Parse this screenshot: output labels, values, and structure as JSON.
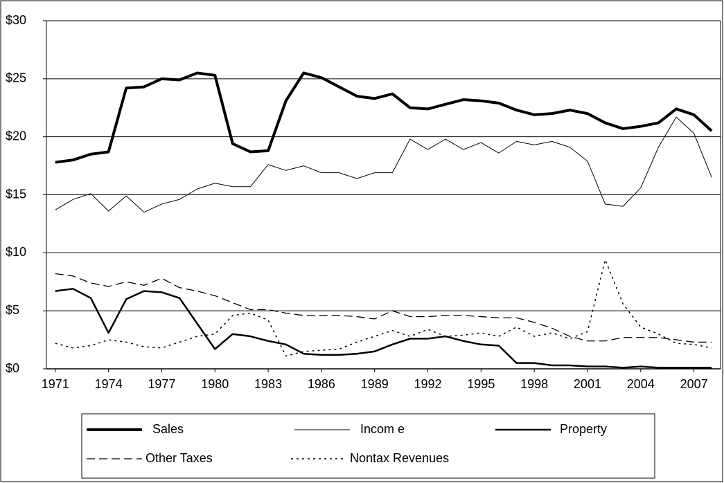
{
  "chart_data": {
    "type": "line",
    "x": [
      1971,
      1972,
      1973,
      1974,
      1975,
      1976,
      1977,
      1978,
      1979,
      1980,
      1981,
      1982,
      1983,
      1984,
      1985,
      1986,
      1987,
      1988,
      1989,
      1990,
      1991,
      1992,
      1993,
      1994,
      1995,
      1996,
      1997,
      1998,
      1999,
      2000,
      2001,
      2002,
      2003,
      2004,
      2005,
      2006,
      2007,
      2008
    ],
    "xlim": [
      1970.5,
      2008.5
    ],
    "xticks": [
      1971,
      1974,
      1977,
      1980,
      1983,
      1986,
      1989,
      1992,
      1995,
      1998,
      2001,
      2004,
      2007
    ],
    "ylim": [
      0,
      30
    ],
    "yticks": [
      {
        "value": 0,
        "label": "$0"
      },
      {
        "value": 5,
        "label": "$5"
      },
      {
        "value": 10,
        "label": "$10"
      },
      {
        "value": 15,
        "label": "$15"
      },
      {
        "value": 20,
        "label": "$20"
      },
      {
        "value": 25,
        "label": "$25"
      },
      {
        "value": 30,
        "label": "$30"
      }
    ],
    "grid": true,
    "legend": "bottom",
    "series": [
      {
        "name": "Sales",
        "color": "#000000",
        "width": 4,
        "dash": "solid",
        "values": [
          17.8,
          18.0,
          18.5,
          18.7,
          24.2,
          24.3,
          25.0,
          24.9,
          25.5,
          25.3,
          19.4,
          18.7,
          18.8,
          23.1,
          25.5,
          25.1,
          24.3,
          23.5,
          23.3,
          23.7,
          22.5,
          22.4,
          22.8,
          23.2,
          23.1,
          22.9,
          22.3,
          21.9,
          22.0,
          22.3,
          22.0,
          21.2,
          20.7,
          20.9,
          21.2,
          22.4,
          21.9,
          20.5
        ]
      },
      {
        "name": "Incom e",
        "color": "#000000",
        "width": 1,
        "dash": "solid",
        "values": [
          13.7,
          14.6,
          15.1,
          13.6,
          14.9,
          13.5,
          14.2,
          14.6,
          15.5,
          16.0,
          15.7,
          15.7,
          17.6,
          17.1,
          17.5,
          16.9,
          16.9,
          16.4,
          16.9,
          16.9,
          19.8,
          18.9,
          19.8,
          18.9,
          19.5,
          18.6,
          19.6,
          19.3,
          19.6,
          19.1,
          17.9,
          14.2,
          14.0,
          15.6,
          19.1,
          21.7,
          20.3,
          16.5
        ]
      },
      {
        "name": "Property",
        "color": "#000000",
        "width": 2.5,
        "dash": "solid",
        "values": [
          6.7,
          6.9,
          6.1,
          3.1,
          6.0,
          6.7,
          6.6,
          6.1,
          3.9,
          1.7,
          3.0,
          2.8,
          2.4,
          2.1,
          1.3,
          1.2,
          1.2,
          1.3,
          1.5,
          2.1,
          2.6,
          2.6,
          2.8,
          2.4,
          2.1,
          2.0,
          0.5,
          0.5,
          0.3,
          0.3,
          0.2,
          0.2,
          0.1,
          0.2,
          0.1,
          0.1,
          0.1,
          0.1
        ]
      },
      {
        "name": "Other Taxes",
        "color": "#000000",
        "width": 1.3,
        "dash": "dashed",
        "values": [
          8.2,
          8.0,
          7.4,
          7.1,
          7.5,
          7.2,
          7.8,
          7.0,
          6.7,
          6.3,
          5.7,
          5.1,
          5.1,
          4.8,
          4.6,
          4.6,
          4.6,
          4.5,
          4.3,
          5.0,
          4.5,
          4.5,
          4.6,
          4.6,
          4.5,
          4.4,
          4.4,
          4.0,
          3.5,
          2.8,
          2.4,
          2.4,
          2.7,
          2.7,
          2.7,
          2.5,
          2.3,
          2.3
        ]
      },
      {
        "name": "Nontax Revenues",
        "color": "#000000",
        "width": 1.5,
        "dash": "dotted",
        "values": [
          2.2,
          1.8,
          2.0,
          2.5,
          2.3,
          1.9,
          1.8,
          2.3,
          2.8,
          3.0,
          4.6,
          4.8,
          4.2,
          1.1,
          1.5,
          1.6,
          1.7,
          2.3,
          2.8,
          3.3,
          2.8,
          3.4,
          2.8,
          2.9,
          3.1,
          2.8,
          3.6,
          2.8,
          3.1,
          2.6,
          3.2,
          9.4,
          5.6,
          3.6,
          3.0,
          2.2,
          2.1,
          1.8
        ]
      }
    ]
  }
}
